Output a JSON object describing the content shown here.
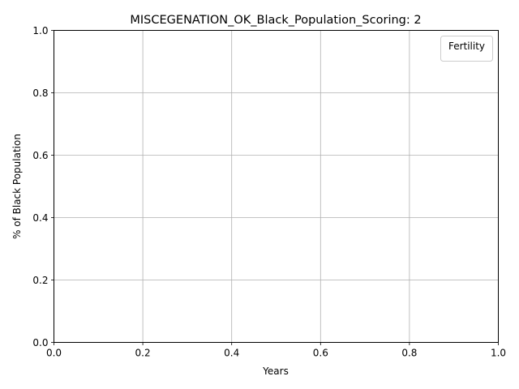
{
  "chart_data": {
    "type": "line",
    "title": "MISCEGENATION_OK_Black_Population_Scoring: 2",
    "xlabel": "Years",
    "ylabel": "% of Black Population",
    "xlim": [
      0.0,
      1.0
    ],
    "ylim": [
      0.0,
      1.0
    ],
    "x_ticks": [
      "0.0",
      "0.2",
      "0.4",
      "0.6",
      "0.8",
      "1.0"
    ],
    "y_ticks": [
      "0.0",
      "0.2",
      "0.4",
      "0.6",
      "0.8",
      "1.0"
    ],
    "grid": true,
    "legend": {
      "title": "Fertility",
      "placement": "top-right",
      "entries": []
    },
    "series": []
  }
}
